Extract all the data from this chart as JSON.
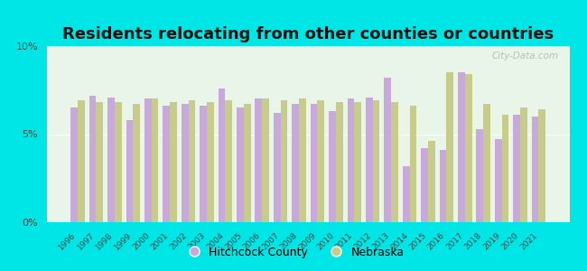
{
  "title": "Residents relocating from other counties or countries",
  "years": [
    1996,
    1997,
    1998,
    1999,
    2000,
    2001,
    2002,
    2003,
    2004,
    2005,
    2006,
    2007,
    2008,
    2009,
    2010,
    2011,
    2012,
    2013,
    2014,
    2015,
    2016,
    2017,
    2018,
    2019,
    2020,
    2021
  ],
  "hitchcock": [
    6.5,
    7.2,
    7.1,
    5.8,
    7.0,
    6.6,
    6.7,
    6.6,
    7.6,
    6.5,
    7.0,
    6.2,
    6.7,
    6.7,
    6.3,
    7.0,
    7.1,
    8.2,
    3.2,
    4.2,
    4.1,
    8.5,
    5.3,
    4.7,
    6.1,
    6.0
  ],
  "nebraska": [
    6.9,
    6.8,
    6.8,
    6.7,
    7.0,
    6.8,
    6.9,
    6.8,
    6.9,
    6.7,
    7.0,
    6.9,
    7.0,
    6.9,
    6.8,
    6.8,
    6.9,
    6.8,
    6.6,
    4.6,
    8.5,
    8.4,
    6.7,
    6.1,
    6.5,
    6.4
  ],
  "hitchcock_color": "#c9a8dc",
  "nebraska_color": "#c8cc8a",
  "background_color": "#e8f5e8",
  "outer_background": "#00e5e5",
  "ylim": [
    0,
    10
  ],
  "yticks": [
    0,
    5,
    10
  ],
  "ytick_labels": [
    "0%",
    "5%",
    "10%"
  ],
  "title_fontsize": 13,
  "bar_width": 0.38,
  "watermark": "City-Data.com"
}
